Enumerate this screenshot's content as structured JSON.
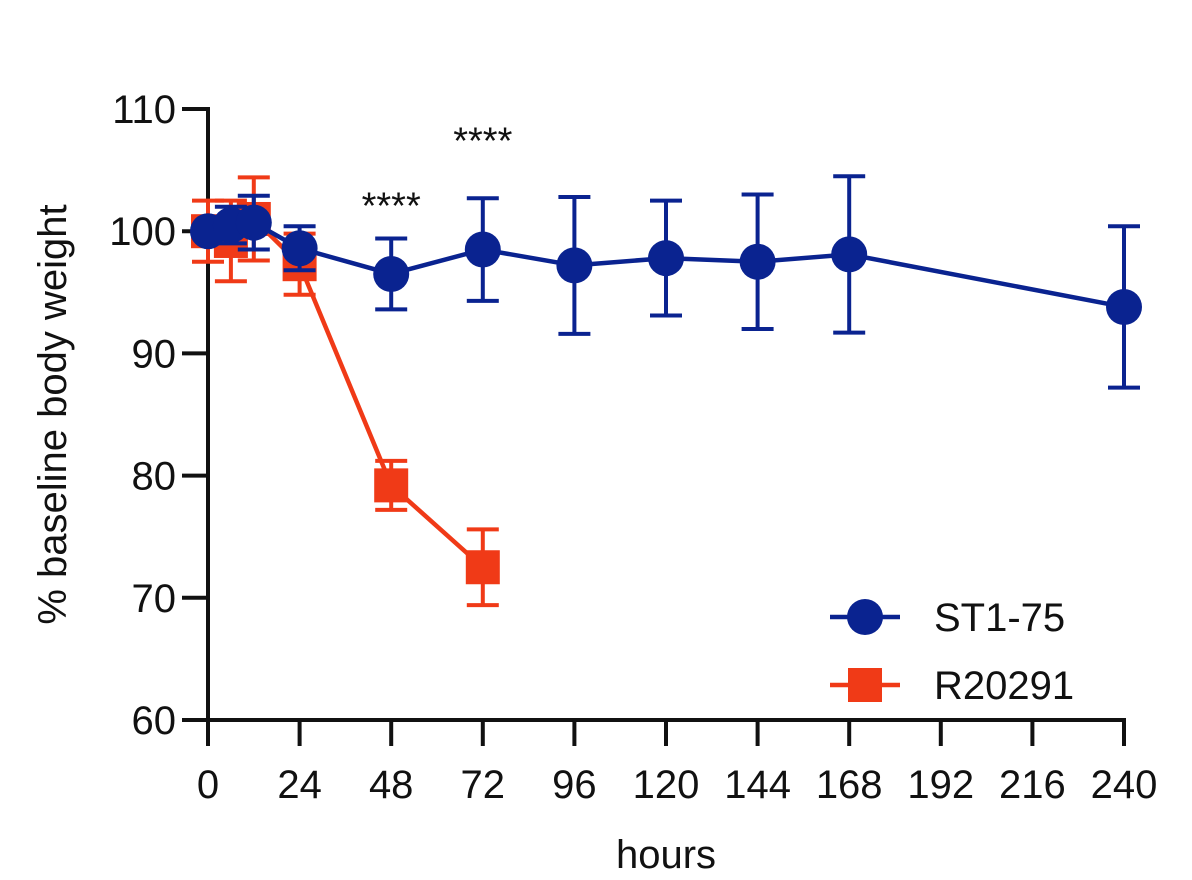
{
  "chart_data": {
    "type": "line",
    "title": "",
    "xlabel": "hours",
    "ylabel": "% baseline body weight",
    "xlim": [
      0,
      240
    ],
    "ylim": [
      60,
      110
    ],
    "xticks": [
      0,
      24,
      48,
      72,
      96,
      120,
      144,
      168,
      192,
      216,
      240
    ],
    "yticks": [
      60,
      70,
      80,
      90,
      100,
      110
    ],
    "legend": "bottom-right",
    "series": [
      {
        "name": "ST1-75",
        "color": "#0a2390",
        "marker": "circle",
        "points": [
          {
            "x": 0,
            "y": 100.0,
            "err": 0.0
          },
          {
            "x": 6,
            "y": 100.5,
            "err": 1.5
          },
          {
            "x": 12,
            "y": 100.7,
            "err": 2.2
          },
          {
            "x": 24,
            "y": 98.6,
            "err": 1.8
          },
          {
            "x": 48,
            "y": 96.5,
            "err": 2.9
          },
          {
            "x": 72,
            "y": 98.5,
            "err": 4.2
          },
          {
            "x": 96,
            "y": 97.2,
            "err": 5.6
          },
          {
            "x": 120,
            "y": 97.8,
            "err": 4.7
          },
          {
            "x": 144,
            "y": 97.5,
            "err": 5.5
          },
          {
            "x": 168,
            "y": 98.1,
            "err": 6.4
          },
          {
            "x": 240,
            "y": 93.8,
            "err": 6.6
          }
        ]
      },
      {
        "name": "R20291",
        "color": "#f03a17",
        "marker": "square",
        "points": [
          {
            "x": 0,
            "y": 100.0,
            "err": 2.5
          },
          {
            "x": 6,
            "y": 99.2,
            "err": 3.3
          },
          {
            "x": 12,
            "y": 101.0,
            "err": 3.4
          },
          {
            "x": 24,
            "y": 97.3,
            "err": 2.5
          },
          {
            "x": 48,
            "y": 79.2,
            "err": 2.0
          },
          {
            "x": 72,
            "y": 72.5,
            "err": 3.1
          }
        ]
      }
    ],
    "annotations": [
      {
        "text": "****",
        "x": 48,
        "y": 102.2
      },
      {
        "text": "****",
        "x": 72,
        "y": 107.5
      }
    ]
  }
}
